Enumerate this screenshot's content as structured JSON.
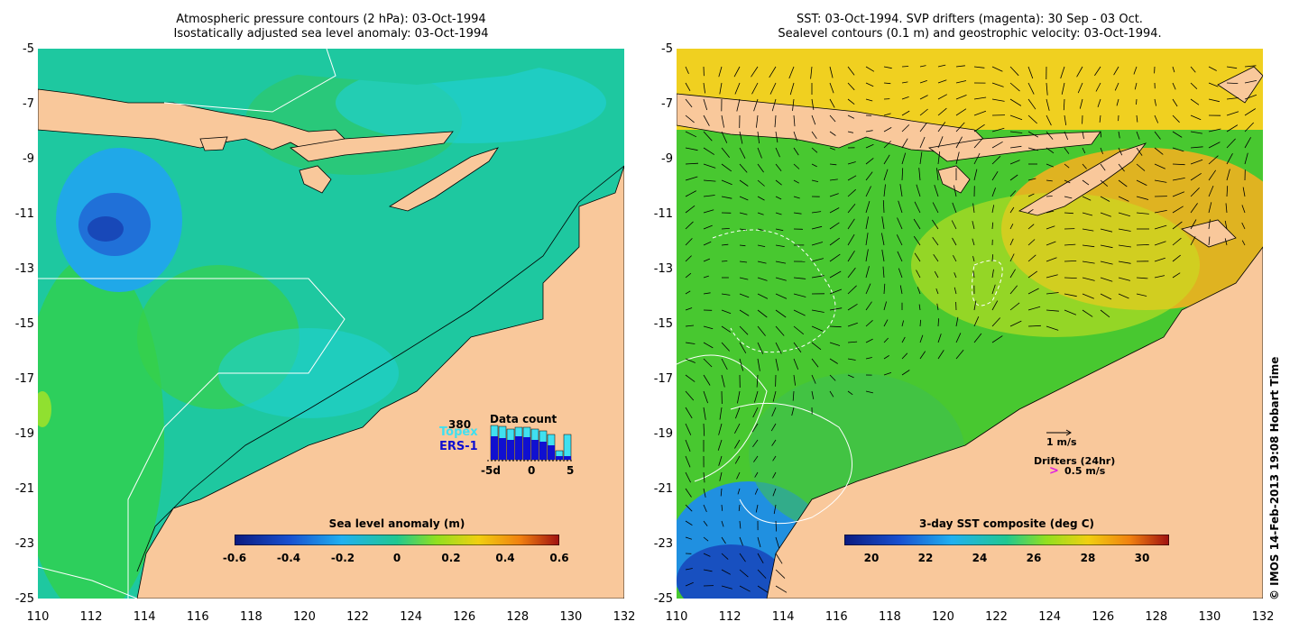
{
  "left_panel": {
    "title_line1": "Atmospheric pressure contours (2 hPa): 03-Oct-1994",
    "title_line2": "Isostatically adjusted sea level anomaly: 03-Oct-1994",
    "y_ticks": [
      "-5",
      "-7",
      "-9",
      "-11",
      "-13",
      "-15",
      "-17",
      "-19",
      "-21",
      "-23",
      "-25"
    ],
    "x_ticks": [
      "110",
      "112",
      "114",
      "116",
      "118",
      "120",
      "122",
      "124",
      "126",
      "128",
      "130",
      "132"
    ],
    "colorbar": {
      "label": "Sea level anomaly (m)",
      "ticks": [
        "-0.6",
        "-0.4",
        "-0.2",
        "0",
        "0.2",
        "0.4",
        "0.6"
      ]
    },
    "data_count": {
      "title": "Data count",
      "max_label": "380",
      "series1": "Topex",
      "series2": "ERS-1",
      "series1_color": "#40e0f0",
      "series2_color": "#1010d0",
      "axis_labels": [
        "-5d",
        "0",
        "5"
      ]
    }
  },
  "right_panel": {
    "title_line1": "SST: 03-Oct-1994. SVP drifters (magenta): 30 Sep - 03 Oct.",
    "title_line2": "Sealevel contours (0.1 m) and geostrophic velocity: 03-Oct-1994.",
    "y_ticks": [
      "-5",
      "-7",
      "-9",
      "-11",
      "-13",
      "-15",
      "-17",
      "-19",
      "-21",
      "-23",
      "-25"
    ],
    "x_ticks": [
      "110",
      "112",
      "114",
      "116",
      "118",
      "120",
      "122",
      "124",
      "126",
      "128",
      "130",
      "132"
    ],
    "colorbar": {
      "label": "3-day SST composite (deg C)",
      "ticks": [
        "20",
        "22",
        "24",
        "26",
        "28",
        "30"
      ]
    },
    "legend": {
      "velocity_label": "1 m/s",
      "drifters_label": "Drifters (24hr)",
      "drifter_speed": "0.5 m/s",
      "drifter_symbol": ">"
    }
  },
  "credit": "© IMOS 14-Feb-2013 19:08 Hobart Time",
  "colors": {
    "land": "#f9c89b",
    "ocean_sla": "#1ec8a0",
    "ocean_sst": "#50c830"
  }
}
